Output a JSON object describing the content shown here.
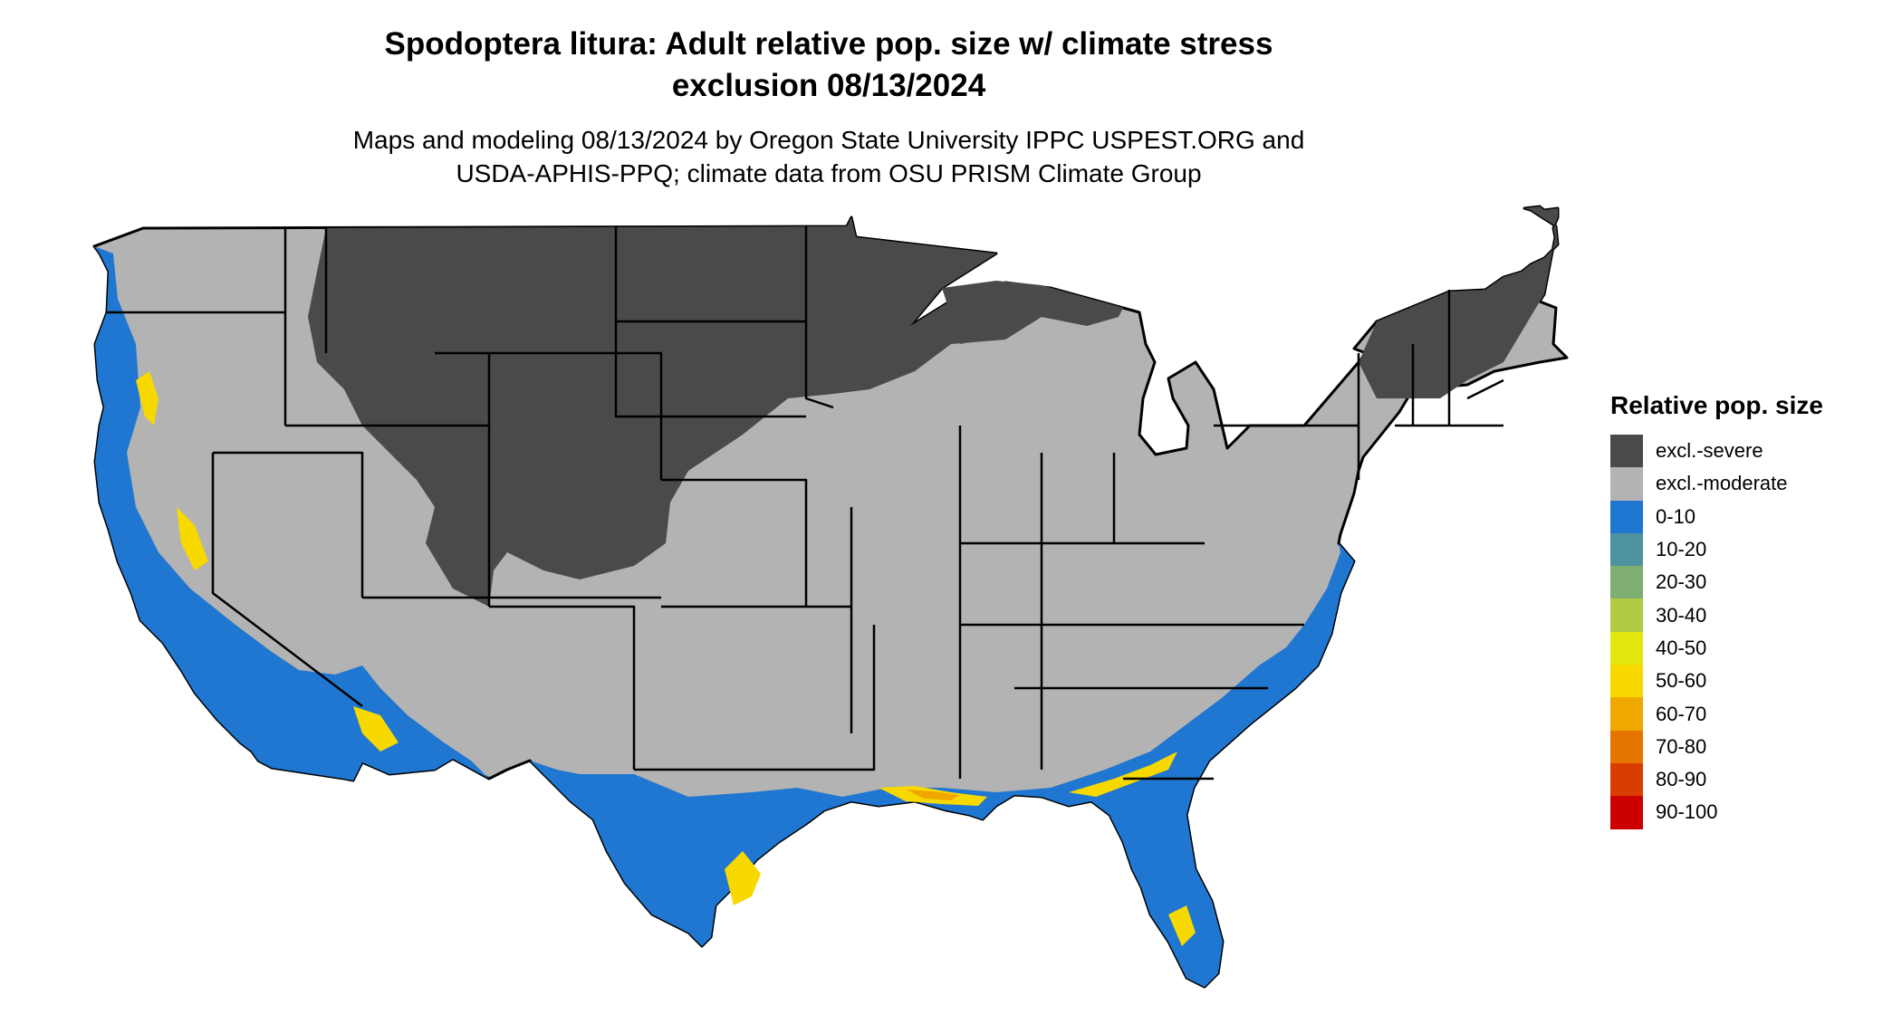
{
  "title": {
    "line1": "Spodoptera litura: Adult relative pop. size w/ climate stress",
    "line2": "exclusion 08/13/2024"
  },
  "subtitle": {
    "line1": "Maps and modeling 08/13/2024 by Oregon State University IPPC USPEST.ORG and",
    "line2": "USDA-APHIS-PPQ; climate data from OSU PRISM Climate Group"
  },
  "legend": {
    "title": "Relative pop. size",
    "items": [
      {
        "label": "excl.-severe",
        "color": "#4a4a4a"
      },
      {
        "label": "excl.-moderate",
        "color": "#b3b3b3"
      },
      {
        "label": "0-10",
        "color": "#1f77d1"
      },
      {
        "label": "10-20",
        "color": "#4d929e"
      },
      {
        "label": "20-30",
        "color": "#7fae72"
      },
      {
        "label": "30-40",
        "color": "#b0cb44"
      },
      {
        "label": "40-50",
        "color": "#e2e80f"
      },
      {
        "label": "50-60",
        "color": "#f7d900"
      },
      {
        "label": "60-70",
        "color": "#f0a800"
      },
      {
        "label": "70-80",
        "color": "#e67500"
      },
      {
        "label": "80-90",
        "color": "#d93e00"
      },
      {
        "label": "90-100",
        "color": "#cc0000"
      }
    ]
  },
  "map": {
    "region": "Contiguous United States",
    "colors": {
      "severe": "#4a4a4a",
      "moderate": "#b3b3b3",
      "low": "#1f77d1",
      "mid": "#f7d900",
      "high": "#e67500",
      "border": "#000000"
    }
  }
}
